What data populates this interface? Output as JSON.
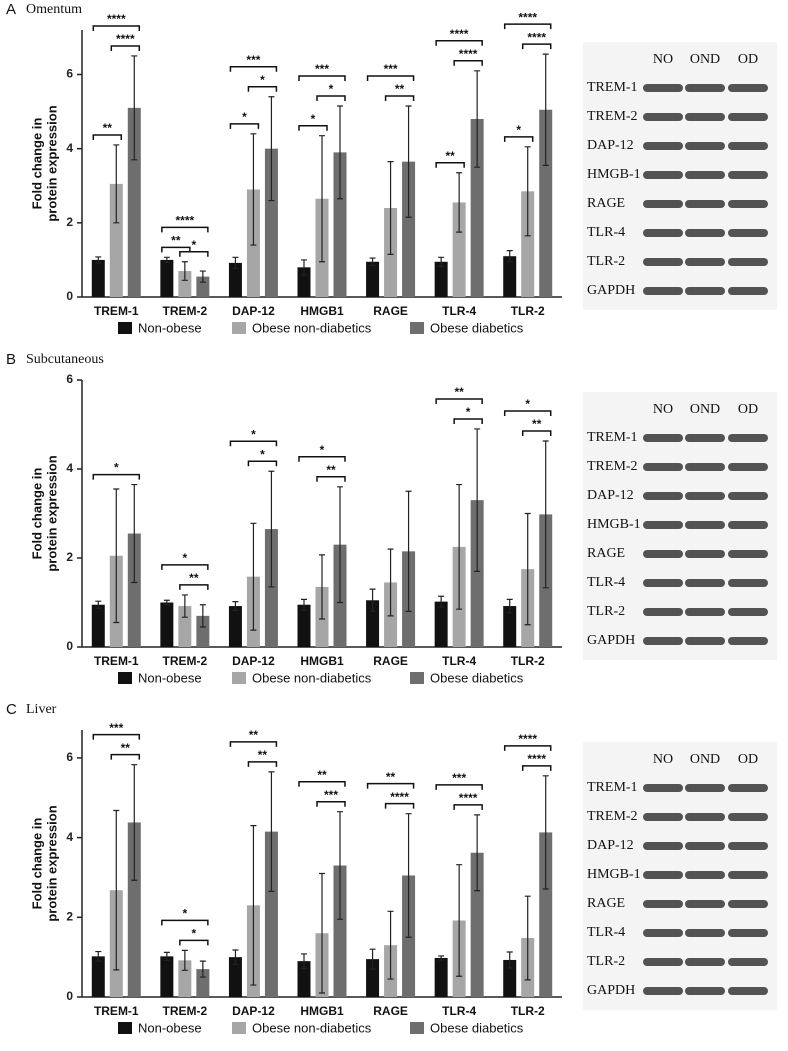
{
  "chart_data": [
    {
      "type": "bar",
      "panel": "A",
      "title": "Omentum",
      "ylabel": [
        "Fold change in",
        "protein expression"
      ],
      "categories": [
        "TREM-1",
        "TREM-2",
        "DAP-12",
        "HMGB1",
        "RAGE",
        "TLR-4",
        "TLR-2"
      ],
      "ylim": [
        0,
        7.2
      ],
      "yticks": [
        0,
        2,
        4,
        6
      ],
      "series": [
        {
          "name": "Non-obese",
          "color": "#111111",
          "values": [
            1.0,
            1.0,
            0.92,
            0.8,
            0.95,
            0.95,
            1.1
          ],
          "errors": [
            0.08,
            0.07,
            0.15,
            0.2,
            0.1,
            0.12,
            0.15
          ]
        },
        {
          "name": "Obese non-diabetics",
          "color": "#a6a6a6",
          "values": [
            3.05,
            0.7,
            2.9,
            2.65,
            2.4,
            2.55,
            2.85
          ],
          "errors": [
            1.05,
            0.25,
            1.5,
            1.7,
            1.25,
            0.8,
            1.2
          ]
        },
        {
          "name": "Obese diabetics",
          "color": "#6e6e6e",
          "values": [
            5.1,
            0.55,
            4.0,
            3.9,
            3.65,
            4.8,
            5.05
          ],
          "errors": [
            1.4,
            0.15,
            1.4,
            1.25,
            1.5,
            1.3,
            1.5
          ]
        }
      ],
      "significance": [
        [
          {
            "label": "**",
            "between": [
              0,
              1
            ]
          },
          {
            "label": "****",
            "between": [
              1,
              2
            ]
          },
          {
            "label": "****",
            "between": [
              0,
              2
            ]
          }
        ],
        [
          {
            "label": "**",
            "between": [
              0,
              1
            ]
          },
          {
            "label": "*",
            "between": [
              1,
              2
            ]
          },
          {
            "label": "****",
            "between": [
              0,
              2
            ]
          }
        ],
        [
          {
            "label": "*",
            "between": [
              0,
              1
            ]
          },
          {
            "label": "*",
            "between": [
              1,
              2
            ]
          },
          {
            "label": "***",
            "between": [
              0,
              2
            ]
          }
        ],
        [
          {
            "label": "*",
            "between": [
              0,
              1
            ]
          },
          {
            "label": "*",
            "between": [
              1,
              2
            ]
          },
          {
            "label": "***",
            "between": [
              0,
              2
            ]
          }
        ],
        [
          {
            "label": "**",
            "between": [
              1,
              2
            ]
          },
          {
            "label": "***",
            "between": [
              0,
              2
            ]
          }
        ],
        [
          {
            "label": "**",
            "between": [
              0,
              1
            ]
          },
          {
            "label": "****",
            "between": [
              1,
              2
            ]
          },
          {
            "label": "****",
            "between": [
              0,
              2
            ]
          }
        ],
        [
          {
            "label": "*",
            "between": [
              0,
              1
            ]
          },
          {
            "label": "****",
            "between": [
              1,
              2
            ]
          },
          {
            "label": "****",
            "between": [
              0,
              2
            ]
          }
        ]
      ],
      "blot": {
        "lanes": [
          "NO",
          "OND",
          "OD"
        ],
        "proteins": [
          "TREM-1",
          "TREM-2",
          "DAP-12",
          "HMGB-1",
          "RAGE",
          "TLR-4",
          "TLR-2",
          "GAPDH"
        ]
      }
    },
    {
      "type": "bar",
      "panel": "B",
      "title": "Subcutaneous",
      "ylabel": [
        "Fold change in",
        "protein expression"
      ],
      "categories": [
        "TREM-1",
        "TREM-2",
        "DAP-12",
        "HMGB1",
        "RAGE",
        "TLR-4",
        "TLR-2"
      ],
      "ylim": [
        0,
        6
      ],
      "yticks": [
        0,
        2,
        4,
        6
      ],
      "series": [
        {
          "name": "Non-obese",
          "color": "#111111",
          "values": [
            0.95,
            1.0,
            0.92,
            0.95,
            1.05,
            1.02,
            0.92
          ],
          "errors": [
            0.08,
            0.05,
            0.1,
            0.12,
            0.25,
            0.12,
            0.15
          ]
        },
        {
          "name": "Obese non-diabetics",
          "color": "#a6a6a6",
          "values": [
            2.05,
            0.92,
            1.58,
            1.35,
            1.45,
            2.25,
            1.75
          ],
          "errors": [
            1.5,
            0.25,
            1.2,
            0.72,
            0.75,
            1.4,
            1.25
          ]
        },
        {
          "name": "Obese diabetics",
          "color": "#6e6e6e",
          "values": [
            2.55,
            0.7,
            2.65,
            2.3,
            2.15,
            3.3,
            2.98
          ],
          "errors": [
            1.1,
            0.25,
            1.3,
            1.3,
            1.35,
            1.6,
            1.65
          ]
        }
      ],
      "significance": [
        [
          {
            "label": "*",
            "between": [
              0,
              2
            ]
          }
        ],
        [
          {
            "label": "**",
            "between": [
              1,
              2
            ]
          },
          {
            "label": "*",
            "between": [
              0,
              2
            ]
          }
        ],
        [
          {
            "label": "*",
            "between": [
              1,
              2
            ]
          },
          {
            "label": "*",
            "between": [
              0,
              2
            ]
          }
        ],
        [
          {
            "label": "**",
            "between": [
              1,
              2
            ]
          },
          {
            "label": "*",
            "between": [
              0,
              2
            ]
          }
        ],
        [],
        [
          {
            "label": "*",
            "between": [
              1,
              2
            ]
          },
          {
            "label": "**",
            "between": [
              0,
              2
            ]
          }
        ],
        [
          {
            "label": "**",
            "between": [
              1,
              2
            ]
          },
          {
            "label": "*",
            "between": [
              0,
              2
            ]
          }
        ]
      ],
      "blot": {
        "lanes": [
          "NO",
          "OND",
          "OD"
        ],
        "proteins": [
          "TREM-1",
          "TREM-2",
          "DAP-12",
          "HMGB-1",
          "RAGE",
          "TLR-4",
          "TLR-2",
          "GAPDH"
        ]
      }
    },
    {
      "type": "bar",
      "panel": "C",
      "title": "Liver",
      "ylabel": [
        "Fold change in",
        "protein expression"
      ],
      "categories": [
        "TREM-1",
        "TREM-2",
        "DAP-12",
        "HMGB1",
        "RAGE",
        "TLR-4",
        "TLR-2"
      ],
      "ylim": [
        0,
        6.7
      ],
      "yticks": [
        0,
        2,
        4,
        6
      ],
      "series": [
        {
          "name": "Non-obese",
          "color": "#111111",
          "values": [
            1.02,
            1.02,
            1.0,
            0.9,
            0.95,
            0.98,
            0.93
          ],
          "errors": [
            0.12,
            0.1,
            0.18,
            0.18,
            0.25,
            0.05,
            0.2
          ]
        },
        {
          "name": "Obese non-diabetics",
          "color": "#a6a6a6",
          "values": [
            2.68,
            0.92,
            2.3,
            1.6,
            1.3,
            1.92,
            1.48
          ],
          "errors": [
            2.0,
            0.25,
            2.0,
            1.5,
            0.85,
            1.4,
            1.05
          ]
        },
        {
          "name": "Obese diabetics",
          "color": "#6e6e6e",
          "values": [
            4.38,
            0.7,
            4.15,
            3.3,
            3.05,
            3.62,
            4.13
          ],
          "errors": [
            1.45,
            0.2,
            1.5,
            1.35,
            1.55,
            0.95,
            1.42
          ]
        }
      ],
      "significance": [
        [
          {
            "label": "**",
            "between": [
              1,
              2
            ]
          },
          {
            "label": "***",
            "between": [
              0,
              2
            ]
          }
        ],
        [
          {
            "label": "*",
            "between": [
              1,
              2
            ]
          },
          {
            "label": "*",
            "between": [
              0,
              2
            ]
          }
        ],
        [
          {
            "label": "**",
            "between": [
              1,
              2
            ]
          },
          {
            "label": "**",
            "between": [
              0,
              2
            ]
          }
        ],
        [
          {
            "label": "***",
            "between": [
              1,
              2
            ]
          },
          {
            "label": "**",
            "between": [
              0,
              2
            ]
          }
        ],
        [
          {
            "label": "****",
            "between": [
              1,
              2
            ]
          },
          {
            "label": "**",
            "between": [
              0,
              2
            ]
          }
        ],
        [
          {
            "label": "****",
            "between": [
              1,
              2
            ]
          },
          {
            "label": "***",
            "between": [
              0,
              2
            ]
          }
        ],
        [
          {
            "label": "****",
            "between": [
              1,
              2
            ]
          },
          {
            "label": "****",
            "between": [
              0,
              2
            ]
          }
        ]
      ],
      "blot": {
        "lanes": [
          "NO",
          "OND",
          "OD"
        ],
        "proteins": [
          "TREM-1",
          "TREM-2",
          "DAP-12",
          "HMGB-1",
          "RAGE",
          "TLR-4",
          "TLR-2",
          "GAPDH"
        ]
      }
    }
  ]
}
